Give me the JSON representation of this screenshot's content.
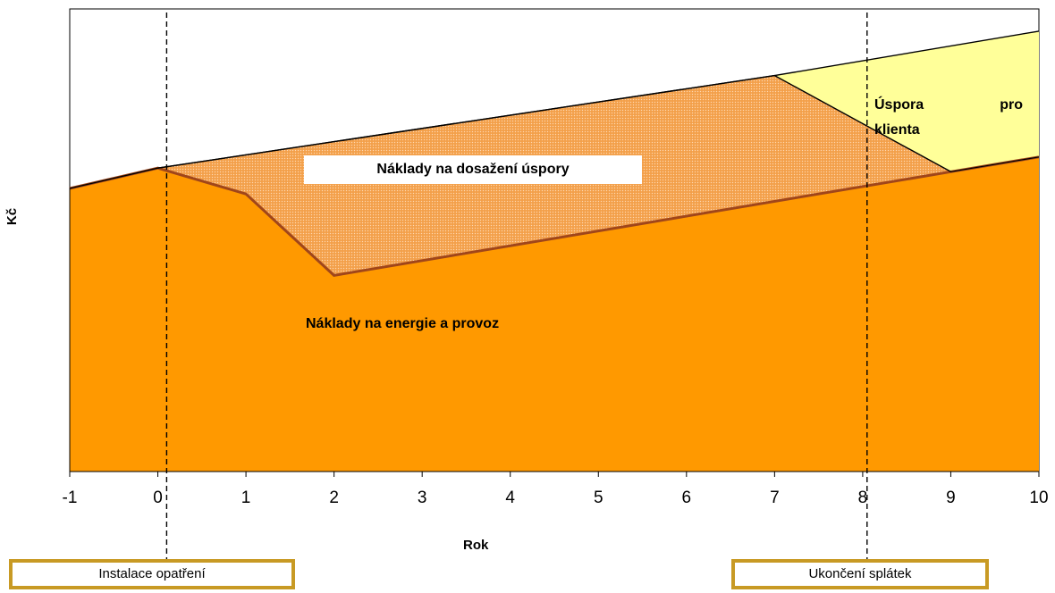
{
  "chart_data": {
    "type": "area",
    "xlabel": "Rok",
    "ylabel": "Kč",
    "xlim": [
      -1,
      10
    ],
    "x_ticks": [
      "-1",
      "0",
      "1",
      "2",
      "3",
      "4",
      "5",
      "6",
      "7",
      "8",
      "9",
      "10"
    ],
    "grid": false,
    "legend": "none",
    "series": [
      {
        "name": "Náklady na energie a provoz",
        "color": "#ff9900",
        "points": [
          [
            -1,
            1.53
          ],
          [
            0,
            1.64
          ],
          [
            1,
            1.5
          ],
          [
            2,
            1.06
          ],
          [
            9,
            1.62
          ],
          [
            10,
            1.7
          ]
        ]
      },
      {
        "name": "Náklady na dosažení úspory",
        "color": "#f4a24a",
        "points": [
          [
            0,
            1.64
          ],
          [
            7,
            2.14
          ],
          [
            9,
            1.62
          ]
        ]
      },
      {
        "name": "Úspora pro klienta",
        "color": "#ffff99",
        "points": [
          [
            7,
            2.14
          ],
          [
            10,
            2.38
          ],
          [
            10,
            1.7
          ],
          [
            9,
            1.62
          ]
        ]
      }
    ],
    "reference_lines": [
      {
        "x": 0.1,
        "style": "dashed"
      },
      {
        "x": 8.05,
        "style": "dashed"
      }
    ],
    "annotations": {
      "energie": "Náklady na energie a provoz",
      "dosazeni": "Náklady na dosažení úspory",
      "uspora_1": "Úspora",
      "uspora_2": "pro",
      "uspora_3": "klienta"
    },
    "notes": {
      "instalace": "Instalace opatření",
      "ukonceni": "Ukončení splátek"
    }
  }
}
